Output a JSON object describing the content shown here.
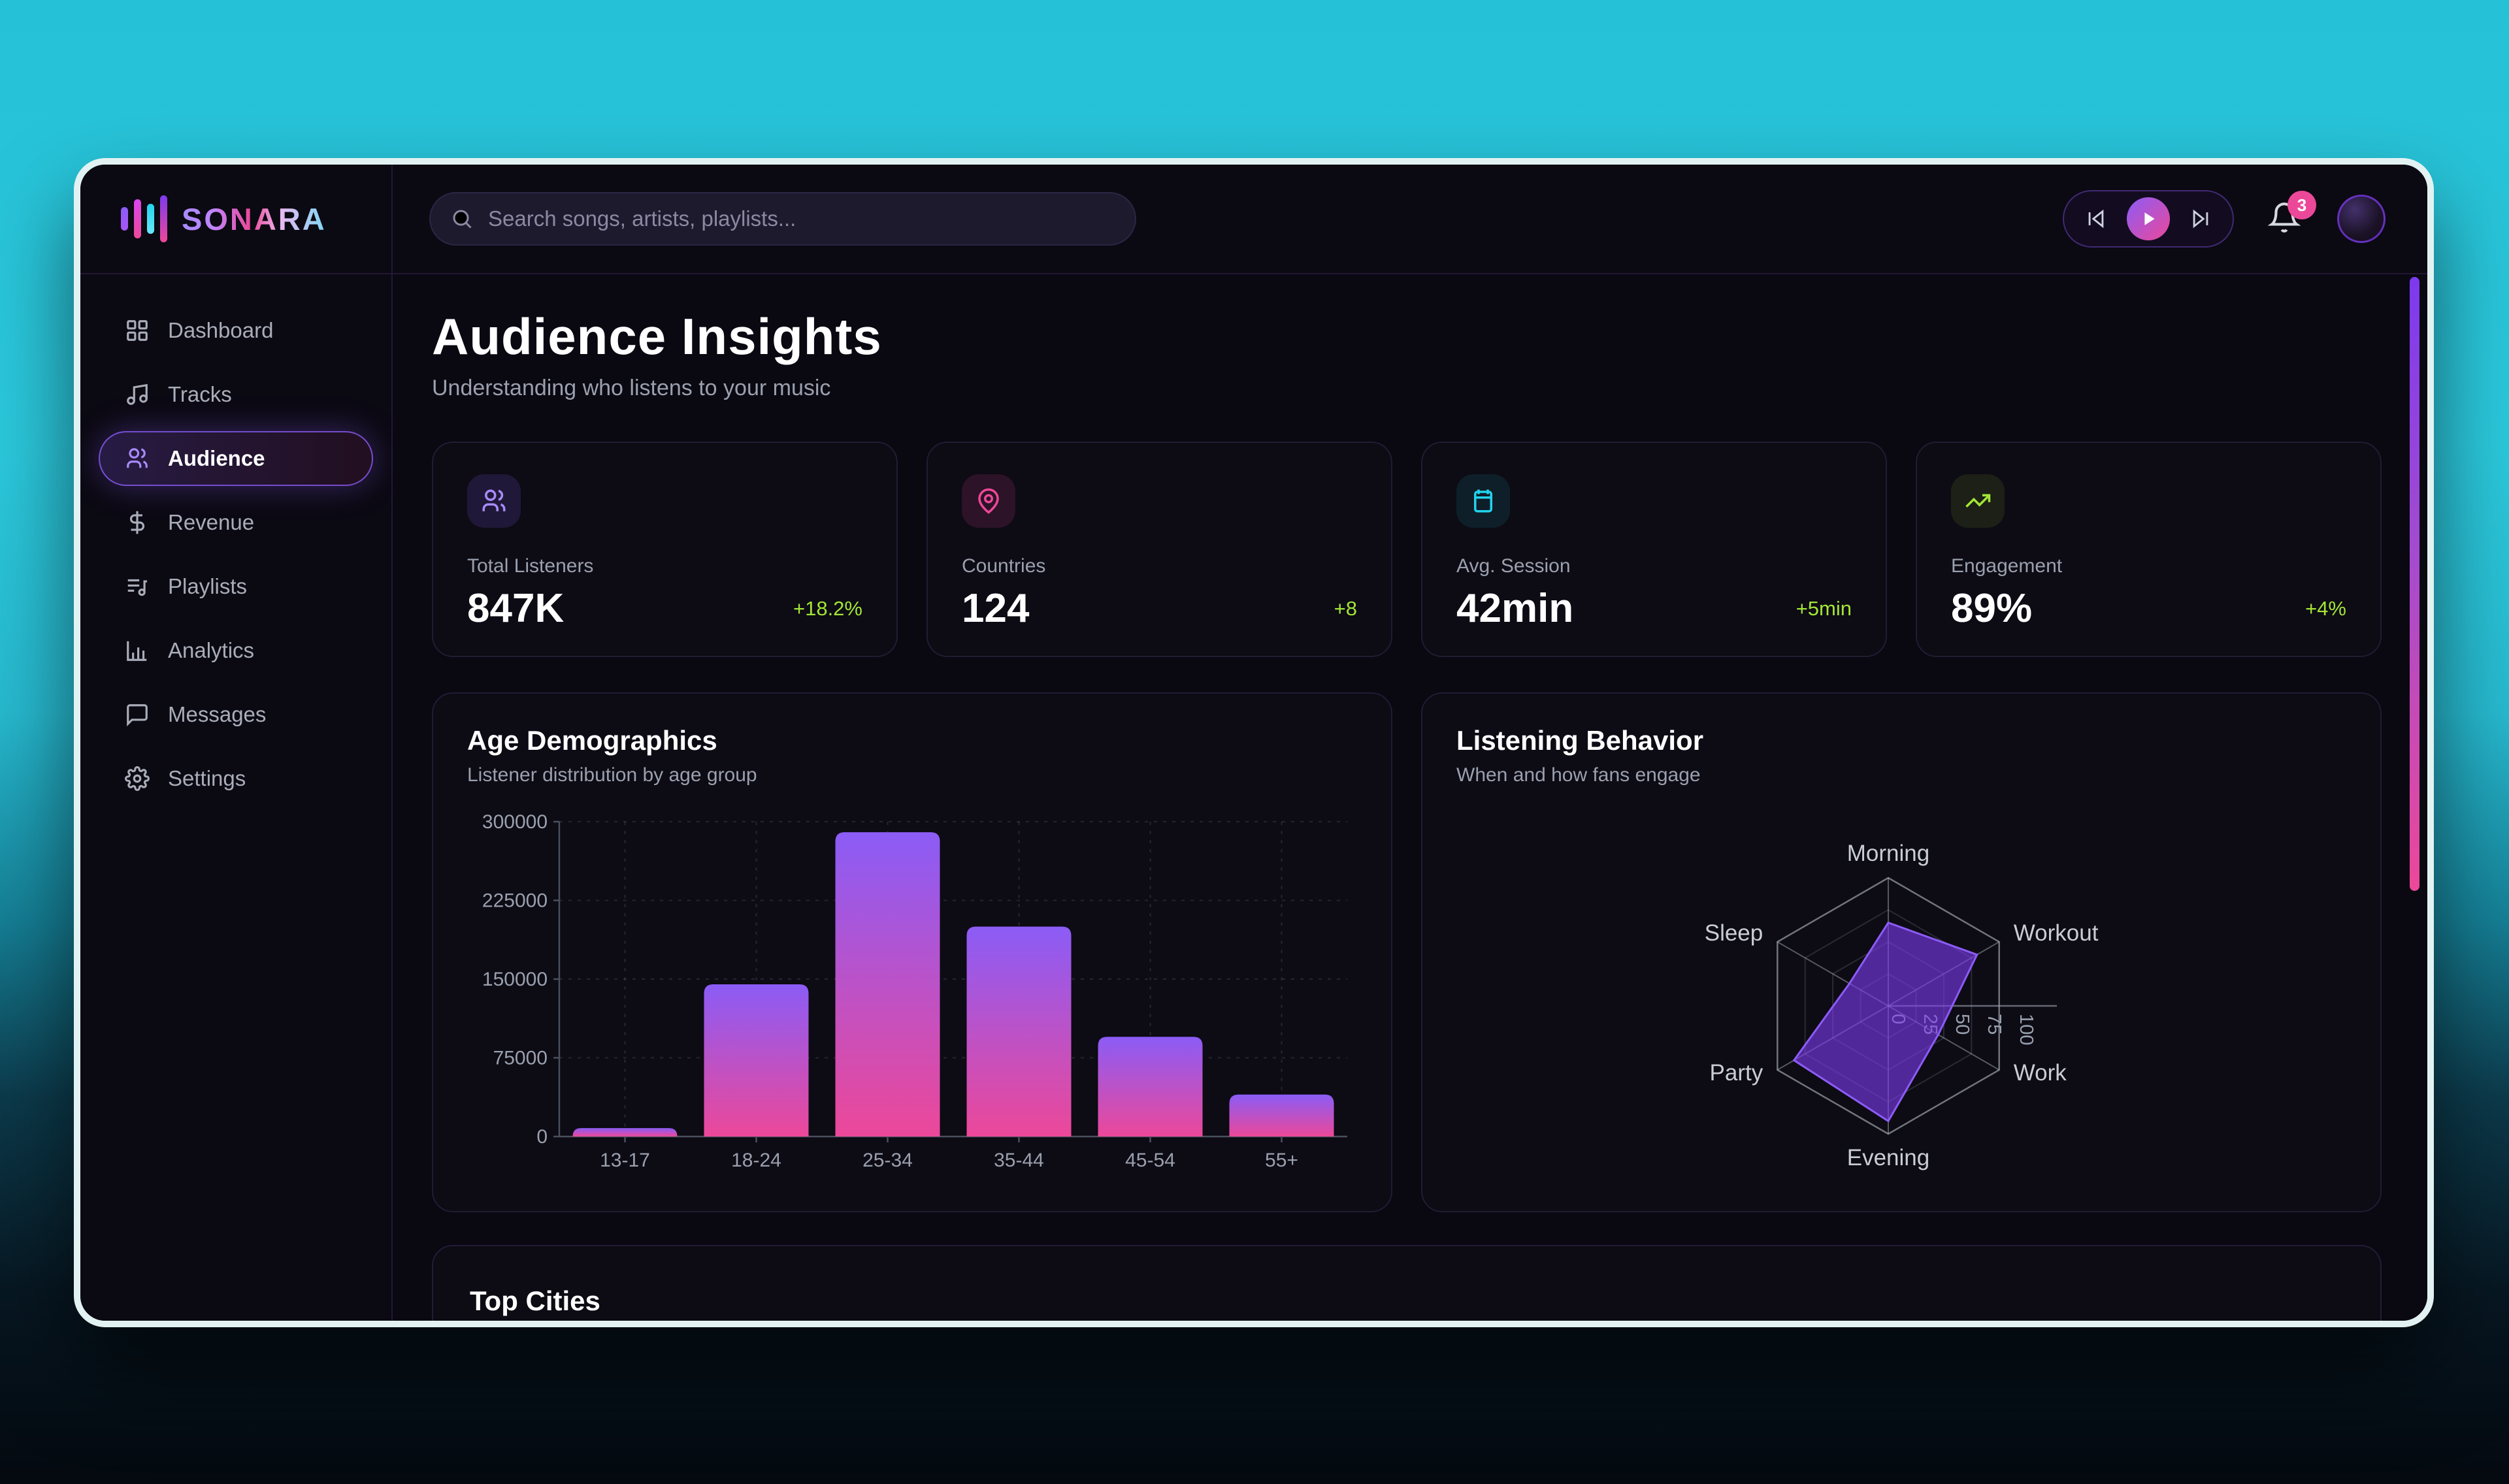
{
  "app": {
    "name": "SONARA"
  },
  "sidebar": {
    "items": [
      {
        "label": "Dashboard",
        "icon": "dashboard-icon",
        "active": false
      },
      {
        "label": "Tracks",
        "icon": "music-note-icon",
        "active": false
      },
      {
        "label": "Audience",
        "icon": "users-icon",
        "active": true
      },
      {
        "label": "Revenue",
        "icon": "dollar-icon",
        "active": false
      },
      {
        "label": "Playlists",
        "icon": "playlist-icon",
        "active": false
      },
      {
        "label": "Analytics",
        "icon": "bar-chart-icon",
        "active": false
      },
      {
        "label": "Messages",
        "icon": "message-icon",
        "active": false
      },
      {
        "label": "Settings",
        "icon": "gear-icon",
        "active": false
      }
    ]
  },
  "topbar": {
    "search_placeholder": "Search songs, artists, playlists...",
    "player": {
      "controls": [
        "skip-back-icon",
        "play-icon",
        "skip-forward-icon"
      ]
    },
    "notifications_badge": "3"
  },
  "page": {
    "title": "Audience Insights",
    "subtitle": "Understanding who listens to your music"
  },
  "stats": {
    "items": [
      {
        "icon": "users-icon",
        "label": "Total Listeners",
        "value": "847K",
        "change": "+18.2%"
      },
      {
        "icon": "map-pin-icon",
        "label": "Countries",
        "value": "124",
        "change": "+8"
      },
      {
        "icon": "calendar-icon",
        "label": "Avg. Session",
        "value": "42min",
        "change": "+5min"
      },
      {
        "icon": "trending-up-icon",
        "label": "Engagement",
        "value": "89%",
        "change": "+4%"
      }
    ],
    "change_color": "#a3e635"
  },
  "chart_data": [
    {
      "type": "bar",
      "title": "Age Demographics",
      "subtitle": "Listener distribution by age group",
      "categories": [
        "13-17",
        "18-24",
        "25-34",
        "35-44",
        "45-54",
        "55+"
      ],
      "values": [
        8000,
        145000,
        290000,
        200000,
        95000,
        40000
      ],
      "yticks": [
        0,
        75000,
        150000,
        225000,
        300000
      ],
      "ylim": [
        0,
        300000
      ],
      "grid": "dashed",
      "bar_gradient": [
        "#8b5cf6",
        "#ec4899"
      ]
    },
    {
      "type": "radar",
      "title": "Listening Behavior",
      "subtitle": "When and how fans engage",
      "axes": [
        "Morning",
        "Workout",
        "Work",
        "Evening",
        "Party",
        "Sleep"
      ],
      "values": [
        65,
        80,
        45,
        90,
        85,
        35
      ],
      "ticks": [
        0,
        25,
        50,
        75,
        100
      ],
      "max": 100,
      "fill_color": "#7c3aed",
      "stroke_color": "#8b5cf6"
    }
  ],
  "sections": {
    "top_cities_title": "Top Cities"
  },
  "colors": {
    "accent_purple": "#8b5cf6",
    "accent_pink": "#ec4899",
    "accent_cyan": "#22d3ee",
    "accent_lime": "#a3e635",
    "badge": "#ec4899",
    "background_teal": "#2bc8dc"
  }
}
